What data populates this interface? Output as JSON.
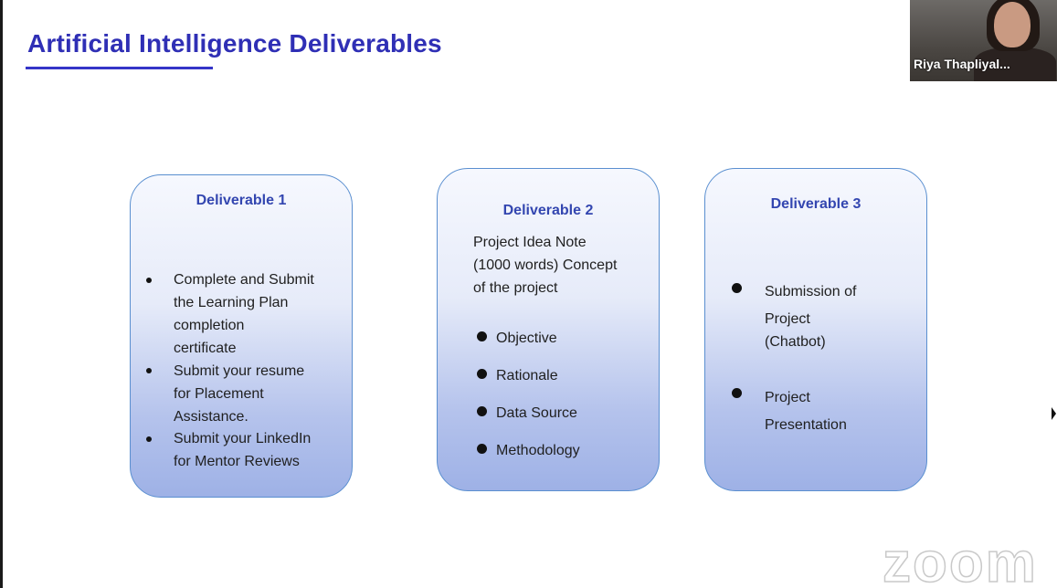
{
  "slide": {
    "title": "Artificial Intelligence Deliverables"
  },
  "deliverables": [
    {
      "title": "Deliverable 1",
      "bullets": [
        [
          "Complete and Submit",
          "the Learning Plan",
          "completion",
          "certificate"
        ],
        [
          "Submit your resume",
          "for Placement",
          "Assistance."
        ],
        [
          "Submit your LinkedIn",
          "for Mentor Reviews"
        ]
      ]
    },
    {
      "title": "Deliverable 2",
      "intro": [
        "Project Idea Note",
        "(1000 words)  Concept",
        "of the project"
      ],
      "bullets": [
        "Objective",
        "Rationale",
        "Data Source",
        "Methodology"
      ]
    },
    {
      "title": "Deliverable 3",
      "bullets": [
        [
          "Submission of",
          "Project",
          "(Chatbot)"
        ],
        [
          "Project",
          "Presentation"
        ]
      ]
    }
  ],
  "video": {
    "participant_name": "Riya Thapliyal..."
  },
  "watermark": "zoom",
  "colors": {
    "title": "#2f2fb5",
    "card_title": "#3346b0",
    "card_border": "#5a8fd0"
  },
  "icons": [
    "bullet-dot-icon",
    "mouse-cursor-icon"
  ]
}
